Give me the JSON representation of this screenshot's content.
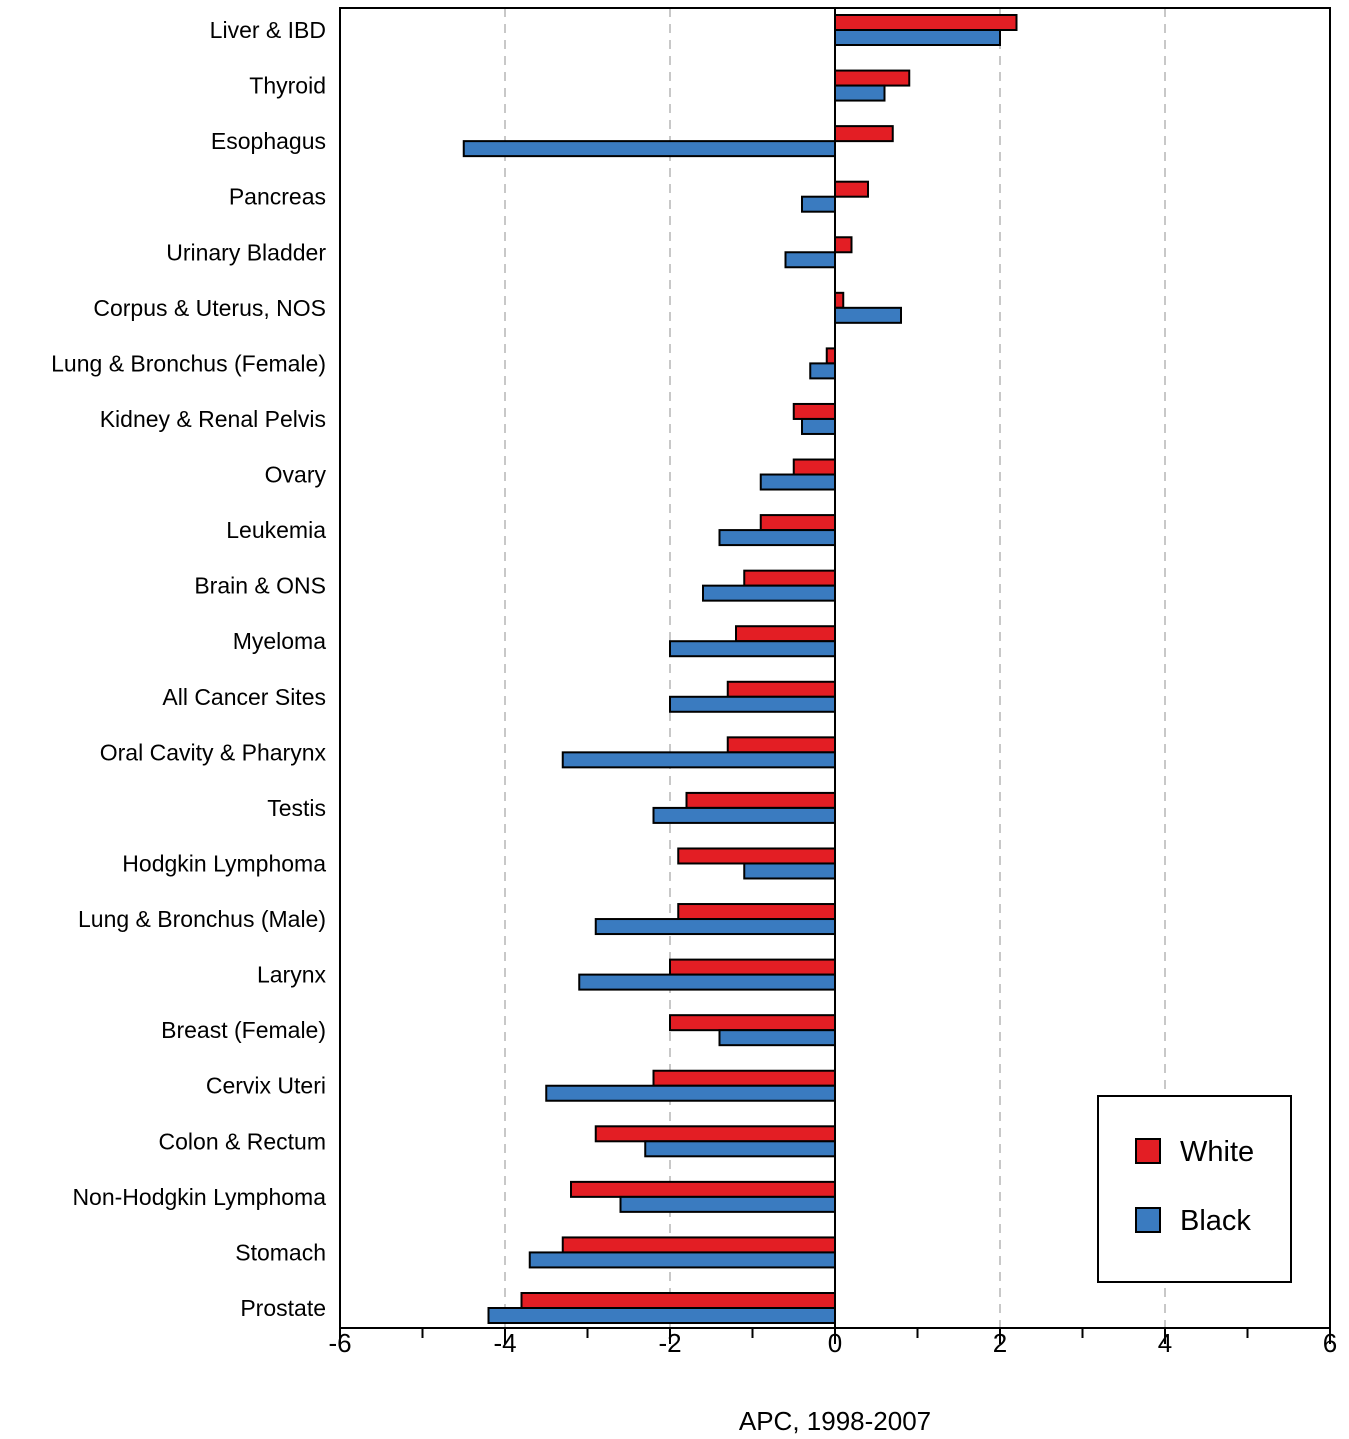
{
  "chart_data": {
    "type": "bar",
    "orientation": "horizontal",
    "xlabel": "APC, 1998-2007",
    "xlim": [
      -6,
      6
    ],
    "xticks": [
      -6,
      -4,
      -2,
      0,
      2,
      4,
      6
    ],
    "x_minor_step": 1,
    "grid": "vertical dashed at -4, -2, 2, 4",
    "legend_position": "bottom-right",
    "categories": [
      "Liver & IBD",
      "Thyroid",
      "Esophagus",
      "Pancreas",
      "Urinary Bladder",
      "Corpus & Uterus, NOS",
      "Lung & Bronchus (Female)",
      "Kidney & Renal Pelvis",
      "Ovary",
      "Leukemia",
      "Brain & ONS",
      "Myeloma",
      "All Cancer Sites",
      "Oral Cavity & Pharynx",
      "Testis",
      "Hodgkin Lymphoma",
      "Lung & Bronchus (Male)",
      "Larynx",
      "Breast (Female)",
      "Cervix Uteri",
      "Colon & Rectum",
      "Non-Hodgkin Lymphoma",
      "Stomach",
      "Prostate"
    ],
    "series": [
      {
        "name": "White",
        "color": "#e31e24",
        "values": [
          2.2,
          0.9,
          0.7,
          0.4,
          0.2,
          0.1,
          -0.1,
          -0.5,
          -0.5,
          -0.9,
          -1.1,
          -1.2,
          -1.3,
          -1.3,
          -1.8,
          -1.9,
          -1.9,
          -2.0,
          -2.0,
          -2.2,
          -2.9,
          -3.2,
          -3.3,
          -3.8
        ]
      },
      {
        "name": "Black",
        "color": "#3a7bc0",
        "values": [
          2.0,
          0.6,
          -4.5,
          -0.4,
          -0.6,
          0.8,
          -0.3,
          -0.4,
          -0.9,
          -1.4,
          -1.6,
          -2.0,
          -2.0,
          -3.3,
          -2.2,
          -1.1,
          -2.9,
          -3.1,
          -1.4,
          -3.5,
          -2.3,
          -2.6,
          -3.7,
          -4.2
        ]
      }
    ]
  }
}
